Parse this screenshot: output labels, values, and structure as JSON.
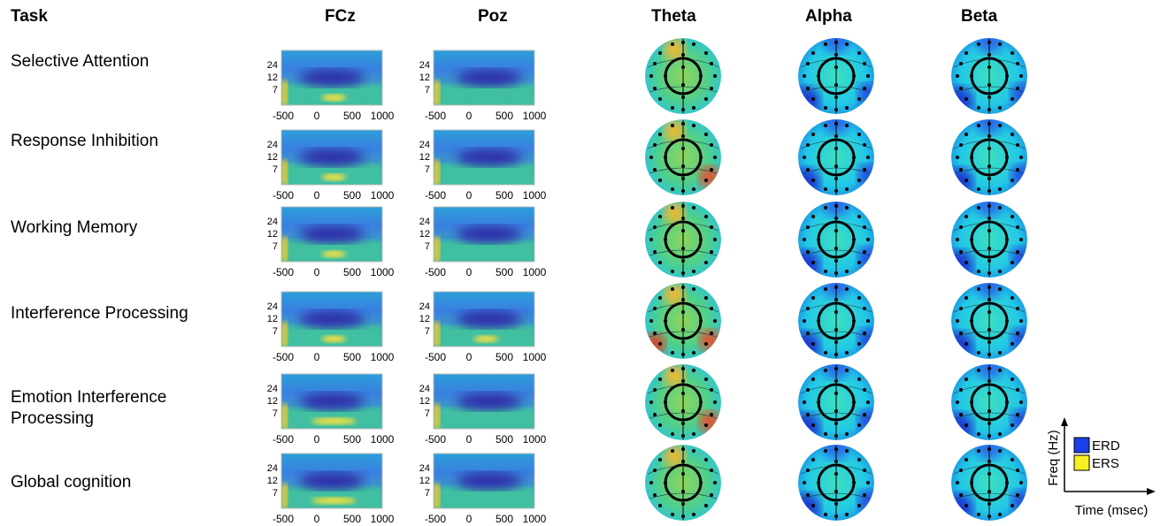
{
  "header": {
    "columns": [
      "Task",
      "FCz",
      "Poz",
      "Theta",
      "Alpha",
      "Beta"
    ]
  },
  "rows": [
    {
      "task": "Selective Attention"
    },
    {
      "task": "Response Inhibition"
    },
    {
      "task": "Working Memory"
    },
    {
      "task": "Interference Processing"
    },
    {
      "task": "Emotion Interference Processing"
    },
    {
      "task": "Global cognition"
    }
  ],
  "spectrogram_axes": {
    "yticks": [
      "24",
      "12",
      "7"
    ],
    "xticks": [
      "-500",
      "0",
      "500",
      "1000"
    ]
  },
  "legend": {
    "y_axis": "Freq (Hz)",
    "x_axis": "Time (msec)",
    "items": [
      "ERD",
      "ERS"
    ]
  }
}
